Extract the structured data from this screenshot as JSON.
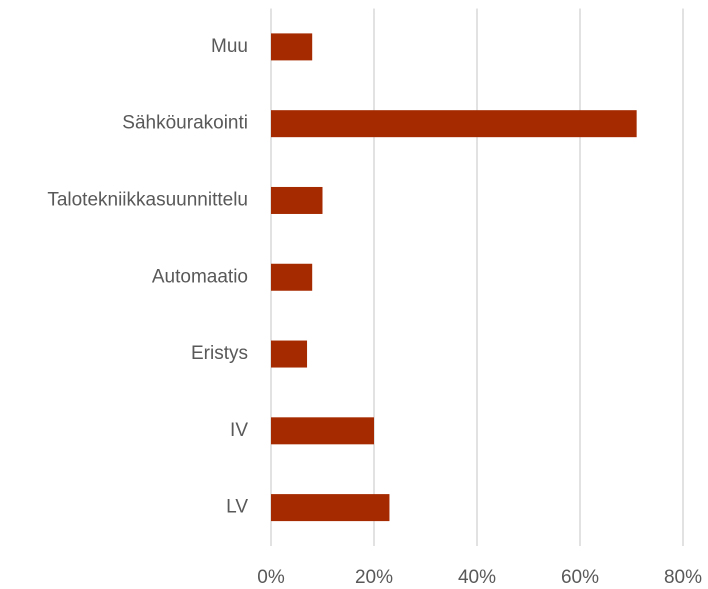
{
  "chart_data": {
    "type": "hbar",
    "categories": [
      "Muu",
      "Sähköurakointi",
      "Talotekniikkasuunnittelu",
      "Automaatio",
      "Eristys",
      "IV",
      "LV"
    ],
    "values": [
      8,
      71,
      10,
      8,
      7,
      20,
      23
    ],
    "color": "#a52a00",
    "xlim": [
      0,
      80
    ],
    "xticks": [
      {
        "value": 0,
        "label": "0%"
      },
      {
        "value": 20,
        "label": "20%"
      },
      {
        "value": 40,
        "label": "40%"
      },
      {
        "value": 60,
        "label": "60%"
      },
      {
        "value": 80,
        "label": "80%"
      }
    ],
    "grid": true
  }
}
